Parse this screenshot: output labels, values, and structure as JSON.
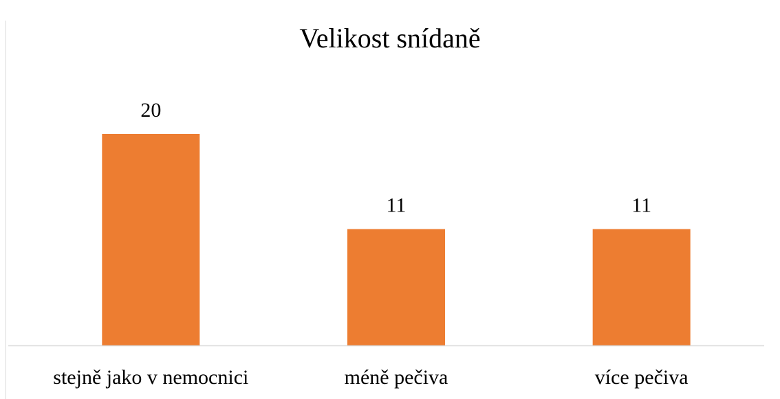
{
  "chart_data": {
    "type": "bar",
    "title": "Velikost snídaně",
    "categories": [
      "stejně jako v nemocnici",
      "méně pečiva",
      "více pečiva"
    ],
    "values": [
      20,
      11,
      11
    ],
    "color": "#ed7d31",
    "ylim": [
      0,
      25
    ]
  }
}
